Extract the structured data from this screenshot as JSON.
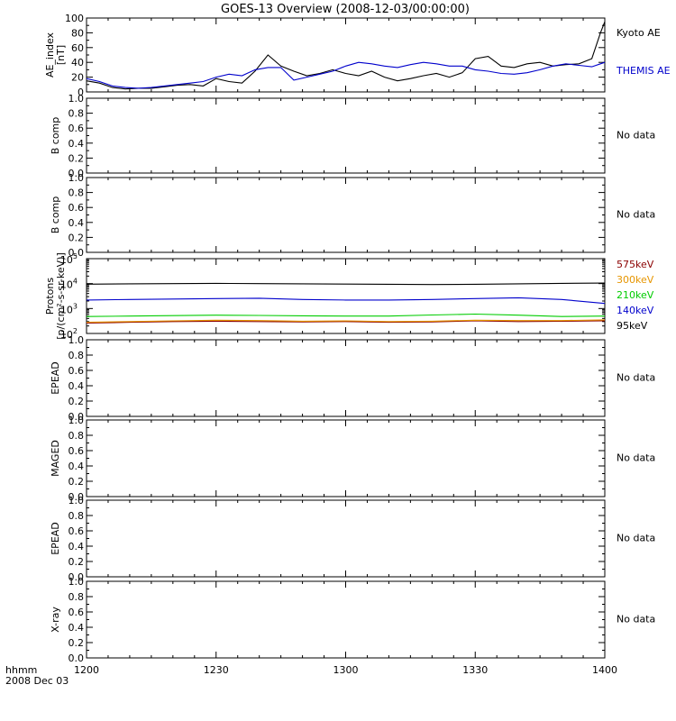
{
  "title": "GOES-13 Overview (2008-12-03/00:00:00)",
  "x_axis": {
    "label_line1": "hhmm",
    "label_line2": "2008 Dec 03",
    "ticks": [
      "1200",
      "1230",
      "1300",
      "1330",
      "1400"
    ],
    "range_minutes": [
      0,
      120
    ]
  },
  "chart_data": [
    {
      "type": "line",
      "ylabel": [
        "AE_index",
        "[nT]"
      ],
      "ylim": [
        0,
        100
      ],
      "yticks": [
        "0",
        "20",
        "40",
        "60",
        "80",
        "100"
      ],
      "x": [
        0,
        3,
        6,
        9,
        12,
        15,
        18,
        21,
        24,
        27,
        30,
        33,
        36,
        39,
        42,
        45,
        48,
        51,
        54,
        57,
        60,
        63,
        66,
        69,
        72,
        75,
        78,
        81,
        84,
        87,
        90,
        93,
        96,
        99,
        102,
        105,
        108,
        111,
        114,
        117,
        119,
        120
      ],
      "series": [
        {
          "name": "Kyoto AE",
          "color": "#000000",
          "values": [
            15,
            12,
            6,
            4,
            5,
            5,
            7,
            9,
            10,
            8,
            18,
            14,
            12,
            28,
            50,
            35,
            28,
            22,
            25,
            30,
            25,
            22,
            28,
            20,
            15,
            18,
            22,
            25,
            20,
            26,
            45,
            48,
            35,
            33,
            38,
            40,
            35,
            37,
            38,
            45,
            80,
            95
          ]
        },
        {
          "name": "THEMIS AE",
          "color": "#0000cc",
          "values": [
            18,
            14,
            8,
            6,
            5,
            6,
            8,
            10,
            12,
            14,
            20,
            24,
            22,
            30,
            33,
            33,
            16,
            20,
            24,
            28,
            35,
            40,
            38,
            35,
            33,
            37,
            40,
            38,
            35,
            35,
            30,
            28,
            25,
            24,
            26,
            30,
            35,
            38,
            36,
            34,
            38,
            40
          ]
        }
      ]
    },
    {
      "type": "line",
      "ylabel": [
        "B comp"
      ],
      "ylim": [
        0,
        1
      ],
      "yticks": [
        "0.0",
        "0.2",
        "0.4",
        "0.6",
        "0.8",
        "1.0"
      ],
      "note": "No data",
      "series": []
    },
    {
      "type": "line",
      "ylabel": [
        "B comp"
      ],
      "ylim": [
        0,
        1
      ],
      "yticks": [
        "0.0",
        "0.2",
        "0.4",
        "0.6",
        "0.8",
        "1.0"
      ],
      "note": "No data",
      "series": []
    },
    {
      "type": "line",
      "ylabel": [
        "Protons",
        "[p/(cm²-s-sr-keV)]"
      ],
      "yscale": "log",
      "ylim": [
        100,
        100000
      ],
      "ytick_exponents": [
        "2",
        "3",
        "4",
        "5"
      ],
      "x": [
        0,
        10,
        20,
        30,
        40,
        50,
        60,
        70,
        80,
        90,
        100,
        110,
        120
      ],
      "series": [
        {
          "name": "575keV",
          "color": "#8b0000",
          "values": [
            260,
            280,
            300,
            310,
            300,
            290,
            300,
            280,
            290,
            320,
            300,
            310,
            320
          ]
        },
        {
          "name": "300keV",
          "color": "#e69500",
          "values": [
            280,
            300,
            320,
            340,
            330,
            310,
            320,
            300,
            310,
            340,
            330,
            330,
            350
          ]
        },
        {
          "name": "210keV",
          "color": "#00cc00",
          "values": [
            480,
            500,
            520,
            540,
            530,
            510,
            500,
            500,
            550,
            600,
            540,
            480,
            500
          ]
        },
        {
          "name": "140keV",
          "color": "#0000cc",
          "values": [
            2200,
            2300,
            2400,
            2500,
            2600,
            2300,
            2200,
            2200,
            2300,
            2500,
            2700,
            2300,
            1600
          ]
        },
        {
          "name": "95keV",
          "color": "#000000",
          "values": [
            9500,
            9800,
            10000,
            10200,
            10000,
            9800,
            9600,
            9400,
            9200,
            9400,
            9800,
            10200,
            10500
          ]
        }
      ]
    },
    {
      "type": "line",
      "ylabel": [
        "EPEAD"
      ],
      "ylim": [
        0,
        1
      ],
      "yticks": [
        "0.0",
        "0.2",
        "0.4",
        "0.6",
        "0.8",
        "1.0"
      ],
      "note": "No data",
      "series": []
    },
    {
      "type": "line",
      "ylabel": [
        "MAGED"
      ],
      "ylim": [
        0,
        1
      ],
      "yticks": [
        "0.0",
        "0.2",
        "0.4",
        "0.6",
        "0.8",
        "1.0"
      ],
      "note": "No data",
      "series": []
    },
    {
      "type": "line",
      "ylabel": [
        "EPEAD"
      ],
      "ylim": [
        0,
        1
      ],
      "yticks": [
        "0.0",
        "0.2",
        "0.4",
        "0.6",
        "0.8",
        "1.0"
      ],
      "note": "No data",
      "series": []
    },
    {
      "type": "line",
      "ylabel": [
        "X-ray"
      ],
      "ylim": [
        0,
        1
      ],
      "yticks": [
        "0.0",
        "0.2",
        "0.4",
        "0.6",
        "0.8",
        "1.0"
      ],
      "note": "No data",
      "series": []
    }
  ]
}
